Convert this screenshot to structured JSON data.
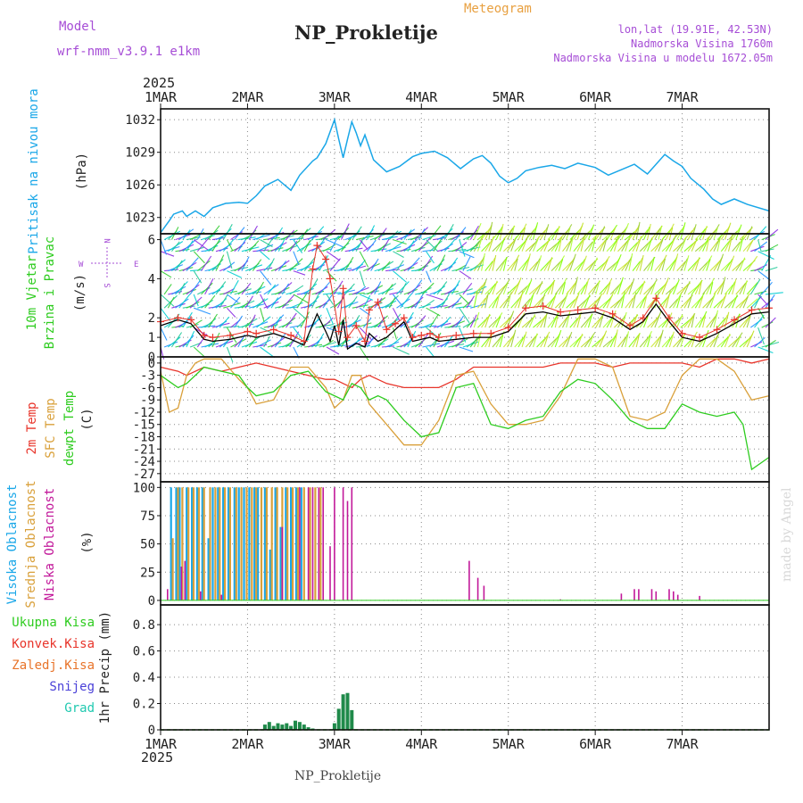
{
  "header": {
    "model_label": "Model",
    "model_name": "wrf-nmm_v3.9.1 e1km",
    "meteogram": "Meteogram",
    "station": "NP_Prokletije",
    "lonlat": "lon,lat (19.91E, 42.53N)",
    "altitude": "Nadmorska Visina 1760m",
    "model_altitude": "Nadmorska Visina u modelu 1672.05m",
    "year": "2025",
    "footer_station": "NP_Prokletije",
    "watermark": "made by Angel"
  },
  "colors": {
    "pressure": "#1aa7e8",
    "wind_speed": "#000000",
    "gust": "#e8342a",
    "t2m": "#e8342a",
    "tsfc": "#d9a03a",
    "dewpt": "#2ecc1f",
    "cloud_high": "#1aa7e8",
    "cloud_mid": "#d9a03a",
    "cloud_low": "#c2189a",
    "precip_total": "#1f8a4a",
    "purple_text": "#a64dd6",
    "orange_text": "#e8a040"
  },
  "chart_data": [
    {
      "type": "line",
      "panel": "pressure",
      "title": "Pritisak na nivou mora",
      "ylabel": "(hPa)",
      "x_ticks": [
        "1MAR",
        "2MAR",
        "3MAR",
        "4MAR",
        "5MAR",
        "6MAR",
        "7MAR"
      ],
      "ylim": [
        1021.5,
        1033
      ],
      "y_ticks": [
        1023,
        1026,
        1029,
        1032
      ],
      "grid": true,
      "series": [
        {
          "x": [
            0,
            0.1,
            0.15,
            0.25,
            0.3,
            0.4,
            0.5,
            0.6,
            0.75,
            0.9,
            1.0,
            1.1,
            1.2,
            1.35,
            1.5,
            1.6,
            1.75,
            1.8,
            1.9,
            2.0,
            2.05,
            2.1,
            2.15,
            2.2,
            2.25,
            2.3,
            2.35,
            2.45,
            2.6,
            2.75,
            2.9,
            3.0,
            3.15,
            3.3,
            3.45,
            3.6,
            3.7,
            3.8,
            3.9,
            4.0,
            4.1,
            4.2,
            4.35,
            4.5,
            4.65,
            4.8,
            5.0,
            5.15,
            5.3,
            5.45,
            5.6,
            5.7,
            5.8,
            5.9,
            6.0,
            6.1,
            6.25,
            6.35,
            6.45,
            6.6,
            6.75,
            7.0
          ],
          "values": [
            1021.6,
            1022.7,
            1023.3,
            1023.6,
            1023.1,
            1023.6,
            1023.1,
            1023.9,
            1024.3,
            1024.4,
            1024.3,
            1025.0,
            1025.9,
            1026.5,
            1025.5,
            1026.9,
            1028.2,
            1028.5,
            1029.8,
            1032.0,
            1030.2,
            1028.5,
            1030.2,
            1031.8,
            1030.8,
            1029.6,
            1030.6,
            1028.3,
            1027.2,
            1027.7,
            1028.6,
            1028.9,
            1029.1,
            1028.5,
            1027.5,
            1028.4,
            1028.7,
            1028.0,
            1026.8,
            1026.2,
            1026.6,
            1027.3,
            1027.6,
            1027.8,
            1027.5,
            1028.0,
            1027.6,
            1026.9,
            1027.4,
            1027.9,
            1027.0,
            1027.9,
            1028.8,
            1028.2,
            1027.7,
            1026.6,
            1025.6,
            1024.7,
            1024.2,
            1024.7,
            1024.2,
            1023.6
          ]
        }
      ]
    },
    {
      "type": "line",
      "panel": "wind",
      "title": "10m Vjetar",
      "subtitle": "Brzina i Pravac",
      "ylabel": "(m/s)",
      "compass": [
        "W",
        "E",
        "N",
        "S"
      ],
      "ylim": [
        0,
        6.3
      ],
      "y_ticks": [
        0,
        1,
        2,
        4,
        6
      ],
      "grid": true,
      "series": [
        {
          "name": "speed",
          "x": [
            0,
            0.2,
            0.35,
            0.5,
            0.6,
            0.8,
            1.0,
            1.1,
            1.3,
            1.5,
            1.65,
            1.8,
            1.9,
            1.95,
            2.0,
            2.05,
            2.1,
            2.15,
            2.25,
            2.35,
            2.4,
            2.5,
            2.6,
            2.7,
            2.8,
            2.9,
            3.0,
            3.1,
            3.2,
            3.4,
            3.6,
            3.8,
            4.0,
            4.2,
            4.4,
            4.6,
            4.8,
            5.0,
            5.2,
            5.4,
            5.55,
            5.7,
            5.85,
            6.0,
            6.2,
            6.4,
            6.6,
            6.8,
            7.0
          ],
          "values": [
            1.6,
            1.9,
            1.7,
            0.9,
            0.8,
            0.9,
            1.1,
            1.0,
            1.2,
            0.9,
            0.6,
            2.2,
            1.3,
            0.8,
            1.6,
            0.6,
            1.9,
            0.4,
            0.7,
            0.5,
            1.2,
            0.8,
            1.0,
            1.4,
            1.8,
            0.8,
            0.9,
            1.0,
            0.8,
            0.9,
            1.0,
            1.0,
            1.3,
            2.2,
            2.3,
            2.1,
            2.2,
            2.3,
            2.0,
            1.4,
            1.8,
            2.7,
            1.8,
            1.0,
            0.8,
            1.2,
            1.7,
            2.2,
            2.3
          ]
        },
        {
          "name": "gust",
          "x": [
            0,
            0.2,
            0.35,
            0.5,
            0.6,
            0.8,
            1.0,
            1.1,
            1.3,
            1.5,
            1.65,
            1.75,
            1.8,
            1.9,
            1.95,
            2.05,
            2.1,
            2.15,
            2.25,
            2.35,
            2.4,
            2.5,
            2.6,
            2.7,
            2.8,
            2.9,
            3.0,
            3.1,
            3.2,
            3.4,
            3.6,
            3.8,
            4.0,
            4.2,
            4.4,
            4.6,
            4.8,
            5.0,
            5.2,
            5.4,
            5.55,
            5.7,
            5.85,
            6.0,
            6.2,
            6.4,
            6.6,
            6.8,
            7.0
          ],
          "values": [
            1.8,
            2.0,
            1.9,
            1.1,
            1.0,
            1.1,
            1.3,
            1.2,
            1.4,
            1.1,
            0.8,
            4.5,
            5.7,
            5.0,
            4.0,
            1.3,
            3.5,
            1.0,
            1.6,
            0.8,
            2.4,
            2.8,
            1.4,
            1.7,
            2.0,
            1.0,
            1.1,
            1.2,
            1.0,
            1.1,
            1.2,
            1.2,
            1.5,
            2.5,
            2.6,
            2.3,
            2.4,
            2.5,
            2.2,
            1.6,
            2.0,
            3.0,
            2.0,
            1.2,
            1.0,
            1.4,
            1.9,
            2.4,
            2.5
          ]
        }
      ]
    },
    {
      "type": "line",
      "panel": "temperature",
      "title_lines": [
        "2m Temp",
        "SFC Temp",
        "dewpt Temp"
      ],
      "ylabel": "(C)",
      "ylim": [
        -29,
        1.5
      ],
      "y_ticks": [
        0,
        -3,
        -6,
        -9,
        -12,
        -15,
        -18,
        -21,
        -24,
        -27
      ],
      "grid": true,
      "series": [
        {
          "name": "2m Temp",
          "x": [
            0,
            0.2,
            0.3,
            0.5,
            0.7,
            0.9,
            1.1,
            1.3,
            1.5,
            1.7,
            1.9,
            2.0,
            2.1,
            2.2,
            2.3,
            2.4,
            2.6,
            2.8,
            3.0,
            3.2,
            3.4,
            3.6,
            3.8,
            4.0,
            4.2,
            4.4,
            4.6,
            4.8,
            5.0,
            5.2,
            5.4,
            5.6,
            5.8,
            6.0,
            6.2,
            6.4,
            6.6,
            6.8,
            7.0
          ],
          "values": [
            -1,
            -2,
            -3,
            -1,
            -2,
            -1,
            0,
            -1,
            -2,
            -3,
            -4,
            -4,
            -5,
            -6,
            -4,
            -3,
            -5,
            -6,
            -6,
            -6,
            -4,
            -1,
            -1,
            -1,
            -1,
            -1,
            0,
            0,
            0,
            -1,
            0,
            0,
            0,
            0,
            -1,
            1,
            1,
            0,
            1
          ]
        },
        {
          "name": "SFC Temp",
          "x": [
            0,
            0.1,
            0.2,
            0.3,
            0.4,
            0.5,
            0.7,
            0.9,
            1.0,
            1.1,
            1.3,
            1.5,
            1.7,
            1.9,
            2.0,
            2.1,
            2.2,
            2.3,
            2.4,
            2.6,
            2.8,
            2.9,
            3.0,
            3.2,
            3.4,
            3.6,
            3.8,
            4.0,
            4.2,
            4.4,
            4.6,
            4.8,
            5.0,
            5.2,
            5.4,
            5.6,
            5.8,
            6.0,
            6.2,
            6.4,
            6.6,
            6.8,
            7.0
          ],
          "values": [
            -2,
            -12,
            -11,
            -3,
            0,
            1,
            1,
            -4,
            -6,
            -10,
            -9,
            -1,
            -1,
            -6,
            -11,
            -9,
            -3,
            -3,
            -10,
            -15,
            -20,
            -20,
            -20,
            -14,
            -3,
            -2,
            -10,
            -15,
            -15,
            -14,
            -8,
            1,
            1,
            -1,
            -13,
            -14,
            -12,
            -3,
            1,
            1,
            -2,
            -9,
            -8
          ]
        },
        {
          "name": "dewpt Temp",
          "x": [
            0,
            0.2,
            0.3,
            0.5,
            0.7,
            0.9,
            1.0,
            1.1,
            1.3,
            1.5,
            1.7,
            1.9,
            2.0,
            2.1,
            2.2,
            2.3,
            2.4,
            2.5,
            2.6,
            2.8,
            3.0,
            3.2,
            3.4,
            3.6,
            3.8,
            4.0,
            4.2,
            4.4,
            4.6,
            4.8,
            5.0,
            5.2,
            5.4,
            5.6,
            5.8,
            6.0,
            6.2,
            6.4,
            6.6,
            6.7,
            6.8,
            7.0
          ],
          "values": [
            -3,
            -6,
            -5,
            -1,
            -2,
            -3,
            -6,
            -8,
            -7,
            -3,
            -2,
            -7,
            -8,
            -9,
            -5,
            -6,
            -9,
            -8,
            -9,
            -14,
            -18,
            -17,
            -6,
            -5,
            -15,
            -16,
            -14,
            -13,
            -7,
            -4,
            -5,
            -9,
            -14,
            -16,
            -16,
            -10,
            -12,
            -13,
            -12,
            -15,
            -26,
            -23
          ]
        }
      ]
    },
    {
      "type": "bar",
      "panel": "cloud",
      "title_lines": [
        "Visoka Oblacnost",
        "Srednja Oblacnost",
        "Niska Oblacnost"
      ],
      "ylabel": "(%)",
      "ylim": [
        -4,
        105
      ],
      "y_ticks": [
        0,
        25,
        50,
        75,
        100
      ],
      "grid": true,
      "series": [
        {
          "name": "Visoka",
          "x": [
            0.12,
            0.18,
            0.22,
            0.3,
            0.36,
            0.42,
            0.48,
            0.55,
            0.6,
            0.66,
            0.72,
            0.78,
            0.85,
            0.9,
            0.96,
            1.02,
            1.08,
            1.12,
            1.2,
            1.26,
            1.32,
            1.38,
            1.44,
            1.5,
            1.56,
            1.62
          ],
          "values": [
            100,
            100,
            100,
            100,
            100,
            100,
            100,
            55,
            100,
            100,
            100,
            100,
            100,
            100,
            100,
            100,
            100,
            100,
            100,
            45,
            100,
            65,
            100,
            100,
            100,
            100
          ]
        },
        {
          "name": "Srednja",
          "x": [
            0.14,
            0.2,
            0.25,
            0.32,
            0.38,
            0.44,
            0.5,
            0.57,
            0.63,
            0.68,
            0.74,
            0.8,
            0.87,
            0.93,
            0.99,
            1.05,
            1.1,
            1.16,
            1.22,
            1.28,
            1.34,
            1.4,
            1.46,
            1.52,
            1.58,
            1.65,
            1.72,
            1.78,
            1.84
          ],
          "values": [
            55,
            100,
            100,
            100,
            100,
            100,
            100,
            100,
            100,
            100,
            100,
            100,
            100,
            100,
            100,
            100,
            100,
            100,
            100,
            100,
            100,
            100,
            100,
            100,
            100,
            100,
            100,
            100,
            100
          ]
        },
        {
          "name": "Niska",
          "x": [
            0.08,
            0.24,
            0.28,
            0.46,
            0.7,
            1.4,
            1.6,
            1.7,
            1.75,
            1.82,
            1.87,
            1.95,
            2.0,
            2.1,
            2.15,
            2.2,
            2.25,
            3.55,
            3.65,
            3.72,
            4.6,
            5.3,
            5.45,
            5.5,
            5.65,
            5.7,
            5.85,
            5.9,
            5.95,
            6.2
          ],
          "values": [
            10,
            30,
            35,
            8,
            5,
            65,
            100,
            100,
            100,
            100,
            100,
            48,
            100,
            100,
            88,
            100,
            0,
            35,
            20,
            13,
            1,
            6,
            10,
            10,
            10,
            8,
            10,
            8,
            5,
            4
          ]
        }
      ]
    },
    {
      "type": "bar",
      "panel": "precip",
      "title_lines": [
        "Ukupna Kisa",
        "Konvek.Kisa",
        "Zaledj.Kisa",
        "Snijeg",
        "Grad"
      ],
      "ylabel": "1hr Precip (mm)",
      "ylim": [
        0,
        0.95
      ],
      "y_ticks": [
        0,
        0.2,
        0.4,
        0.6,
        0.8
      ],
      "grid": true,
      "series": [
        {
          "name": "Ukupna Kisa",
          "x": [
            1.2,
            1.25,
            1.3,
            1.35,
            1.4,
            1.45,
            1.5,
            1.55,
            1.6,
            1.65,
            1.7,
            1.75,
            2.0,
            2.05,
            2.1,
            2.15,
            2.2
          ],
          "values": [
            0.04,
            0.06,
            0.03,
            0.05,
            0.04,
            0.05,
            0.03,
            0.07,
            0.06,
            0.04,
            0.02,
            0.01,
            0.05,
            0.16,
            0.27,
            0.28,
            0.15
          ]
        }
      ]
    }
  ]
}
